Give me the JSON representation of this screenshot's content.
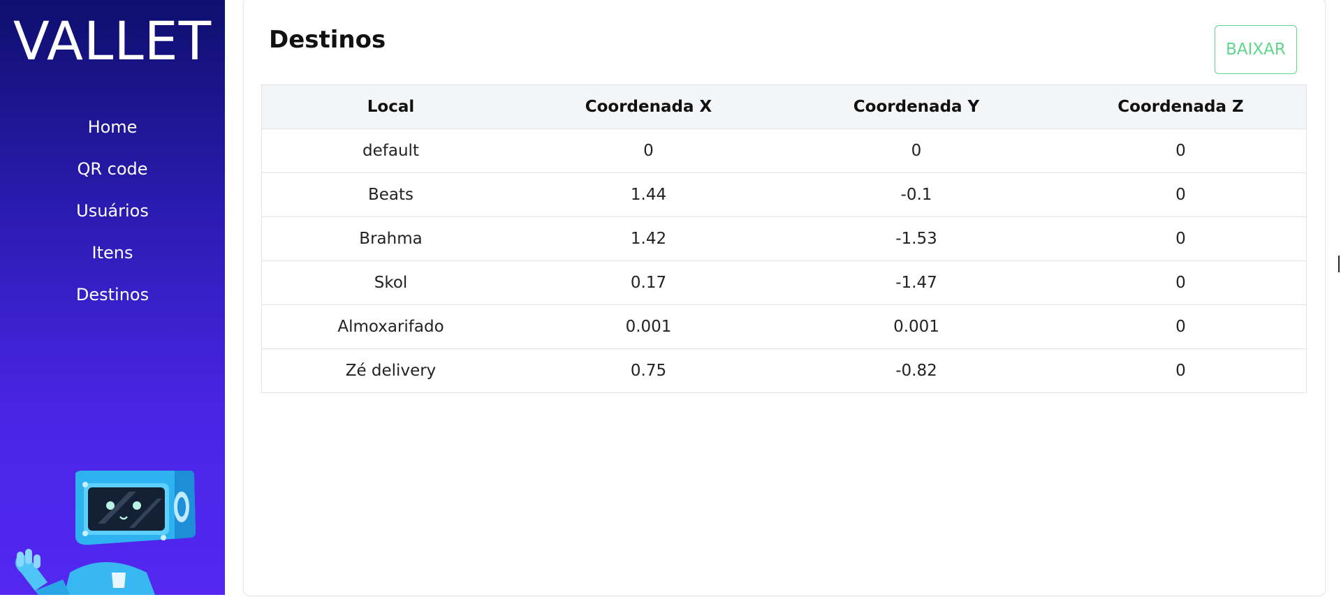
{
  "app": {
    "logo": "VALLET"
  },
  "sidebar": {
    "items": [
      {
        "label": "Home"
      },
      {
        "label": "QR code"
      },
      {
        "label": "Usuários"
      },
      {
        "label": "Itens"
      },
      {
        "label": "Destinos"
      }
    ]
  },
  "main": {
    "title": "Destinos",
    "download_label": "BAIXAR",
    "table": {
      "headers": [
        "Local",
        "Coordenada X",
        "Coordenada Y",
        "Coordenada Z"
      ],
      "rows": [
        [
          "default",
          "0",
          "0",
          "0"
        ],
        [
          "Beats",
          "1.44",
          "-0.1",
          "0"
        ],
        [
          "Brahma",
          "1.42",
          "-1.53",
          "0"
        ],
        [
          "Skol",
          "0.17",
          "-1.47",
          "0"
        ],
        [
          "Almoxarifado",
          "0.001",
          "0.001",
          "0"
        ],
        [
          "Zé delivery",
          "0.75",
          "-0.82",
          "0"
        ]
      ]
    }
  },
  "colors": {
    "sidebar_top": "#0e0f6e",
    "sidebar_bottom": "#5327f0",
    "accent_green": "#5fd68a"
  },
  "icons": {
    "mascot": "robot-mascot-icon"
  }
}
